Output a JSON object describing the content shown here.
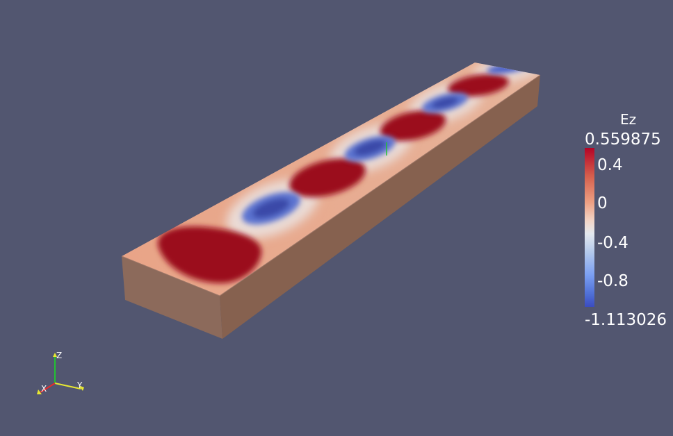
{
  "scalar_bar": {
    "title": "Ez",
    "max_label": "0.559875",
    "min_label": "-1.113026",
    "ticks": [
      "0.4",
      "0",
      "-0.4",
      "-0.8"
    ]
  },
  "orientation_axes": {
    "x_label": "X",
    "y_label": "Y",
    "z_label": "Z"
  },
  "colors": {
    "background": "#525670",
    "positive": "#9a0a1e",
    "negative": "#3d4ea8",
    "neutral": "#ebd7cd",
    "box_side": "#8a6656"
  }
}
